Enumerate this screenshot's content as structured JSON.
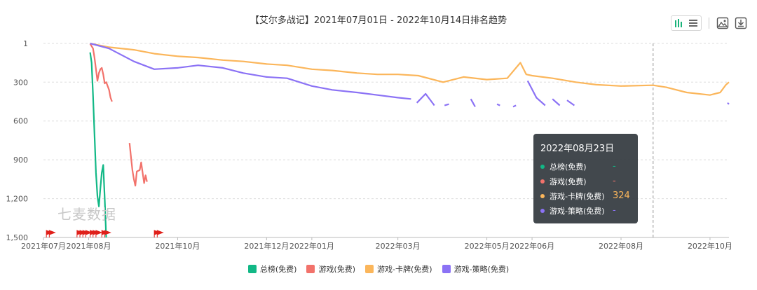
{
  "title": "【艾尔多战记】2021年07月01日 - 2022年10月14日排名趋势",
  "toolbar": {
    "chart_mode_icon": "bar-chart-icon",
    "list_mode_icon": "list-icon",
    "image_icon": "image-icon",
    "download_icon": "download-icon",
    "accent": "#19b37a"
  },
  "watermark": "七麦数据",
  "tooltip": {
    "date": "2022年08月23日",
    "rows": [
      {
        "name": "总榜(免费)",
        "value": "-",
        "color": "#12b886"
      },
      {
        "name": "游戏(免费)",
        "value": "-",
        "color": "#f2726b"
      },
      {
        "name": "游戏-卡牌(免费)",
        "value": "324",
        "color": "#fbb65b"
      },
      {
        "name": "游戏-策略(免费)",
        "value": "-",
        "color": "#8b72f5"
      }
    ]
  },
  "chart_data": {
    "type": "line",
    "title": "【艾尔多战记】2021年07月01日 - 2022年10月14日排名趋势",
    "xlabel": "",
    "ylabel": "",
    "y_inverted": true,
    "ylim": [
      1,
      1500
    ],
    "y_ticks": [
      "1",
      "300",
      "600",
      "900",
      "1,200",
      "1,500"
    ],
    "y_tick_values": [
      1,
      300,
      600,
      900,
      1200,
      1500
    ],
    "x_range": [
      "2021-07-01",
      "2022-10-14"
    ],
    "x_ticks": [
      "2021年07月",
      "2021年08月",
      "2021年10月",
      "2021年12月",
      "2022年01月",
      "2022年03月",
      "2022年05月",
      "2022年06月",
      "2022年08月",
      "2022年10月"
    ],
    "x_tick_dates": [
      "2021-07-01",
      "2021-08-01",
      "2021-10-01",
      "2021-12-01",
      "2022-01-01",
      "2022-03-01",
      "2022-05-01",
      "2022-06-01",
      "2022-08-01",
      "2022-10-01"
    ],
    "grid": true,
    "legend_position": "bottom",
    "crosshair_date": "2022-08-23",
    "event_flag_dates": [
      "2021-07-03",
      "2021-07-05",
      "2021-07-24",
      "2021-07-26",
      "2021-07-28",
      "2021-07-30",
      "2021-08-02",
      "2021-08-04",
      "2021-08-06",
      "2021-08-10",
      "2021-08-12",
      "2021-09-15",
      "2021-09-17"
    ],
    "series": [
      {
        "name": "总榜(免费)",
        "color": "#12b886",
        "segments": [
          [
            [
              "2021-08-02",
              70
            ],
            [
              "2021-08-03",
              150
            ],
            [
              "2021-08-04",
              400
            ],
            [
              "2021-08-05",
              700
            ],
            [
              "2021-08-06",
              1000
            ],
            [
              "2021-08-07",
              1180
            ],
            [
              "2021-08-08",
              1260
            ],
            [
              "2021-08-09",
              1120
            ],
            [
              "2021-08-10",
              1000
            ],
            [
              "2021-08-11",
              940
            ],
            [
              "2021-08-12",
              1200
            ],
            [
              "2021-08-13",
              1500
            ]
          ]
        ]
      },
      {
        "name": "游戏(免费)",
        "color": "#f2726b",
        "segments": [
          [
            [
              "2021-08-02",
              3
            ],
            [
              "2021-08-04",
              40
            ],
            [
              "2021-08-05",
              110
            ],
            [
              "2021-08-06",
              200
            ],
            [
              "2021-08-07",
              290
            ],
            [
              "2021-08-08",
              230
            ],
            [
              "2021-08-09",
              200
            ],
            [
              "2021-08-10",
              190
            ],
            [
              "2021-08-11",
              240
            ],
            [
              "2021-08-12",
              310
            ],
            [
              "2021-08-13",
              300
            ],
            [
              "2021-08-15",
              360
            ],
            [
              "2021-08-16",
              420
            ],
            [
              "2021-08-17",
              450
            ]
          ],
          [
            [
              "2021-08-29",
              770
            ],
            [
              "2021-08-30",
              880
            ],
            [
              "2021-08-31",
              980
            ],
            [
              "2021-09-01",
              1050
            ],
            [
              "2021-09-02",
              1100
            ],
            [
              "2021-09-03",
              990
            ],
            [
              "2021-09-05",
              980
            ],
            [
              "2021-09-06",
              920
            ],
            [
              "2021-09-07",
              1000
            ],
            [
              "2021-09-08",
              1080
            ],
            [
              "2021-09-09",
              1020
            ],
            [
              "2021-09-10",
              1070
            ]
          ]
        ]
      },
      {
        "name": "游戏-卡牌(免费)",
        "color": "#fbb65b",
        "segments": [
          [
            [
              "2021-08-02",
              1
            ],
            [
              "2021-08-15",
              30
            ],
            [
              "2021-09-01",
              50
            ],
            [
              "2021-09-15",
              80
            ],
            [
              "2021-10-01",
              100
            ],
            [
              "2021-10-15",
              110
            ],
            [
              "2021-11-01",
              130
            ],
            [
              "2021-11-15",
              140
            ],
            [
              "2021-12-01",
              160
            ],
            [
              "2021-12-15",
              170
            ],
            [
              "2022-01-01",
              200
            ],
            [
              "2022-01-15",
              210
            ],
            [
              "2022-02-01",
              230
            ],
            [
              "2022-02-15",
              240
            ],
            [
              "2022-03-01",
              240
            ],
            [
              "2022-03-15",
              250
            ],
            [
              "2022-04-01",
              300
            ],
            [
              "2022-04-15",
              260
            ],
            [
              "2022-05-01",
              280
            ],
            [
              "2022-05-15",
              270
            ],
            [
              "2022-05-24",
              150
            ],
            [
              "2022-05-28",
              240
            ],
            [
              "2022-06-01",
              250
            ],
            [
              "2022-06-15",
              270
            ],
            [
              "2022-07-01",
              300
            ],
            [
              "2022-07-15",
              320
            ],
            [
              "2022-08-01",
              330
            ],
            [
              "2022-08-23",
              324
            ],
            [
              "2022-09-01",
              340
            ],
            [
              "2022-09-15",
              380
            ],
            [
              "2022-10-01",
              400
            ],
            [
              "2022-10-08",
              380
            ],
            [
              "2022-10-12",
              320
            ],
            [
              "2022-10-14",
              300
            ]
          ]
        ]
      },
      {
        "name": "游戏-策略(免费)",
        "color": "#8b72f5",
        "segments": [
          [
            [
              "2021-08-02",
              1
            ],
            [
              "2021-08-15",
              40
            ],
            [
              "2021-09-01",
              140
            ],
            [
              "2021-09-15",
              200
            ],
            [
              "2021-10-01",
              190
            ],
            [
              "2021-10-15",
              170
            ],
            [
              "2021-11-01",
              190
            ],
            [
              "2021-11-15",
              230
            ],
            [
              "2021-12-01",
              260
            ],
            [
              "2021-12-15",
              270
            ],
            [
              "2022-01-01",
              330
            ],
            [
              "2022-01-15",
              360
            ],
            [
              "2022-02-01",
              380
            ],
            [
              "2022-02-15",
              400
            ],
            [
              "2022-03-01",
              420
            ],
            [
              "2022-03-10",
              430
            ]
          ],
          [
            [
              "2022-03-14",
              460
            ],
            [
              "2022-03-20",
              390
            ],
            [
              "2022-03-26",
              480
            ]
          ],
          [
            [
              "2022-04-02",
              480
            ],
            [
              "2022-04-05",
              470
            ]
          ],
          [
            [
              "2022-04-20",
              430
            ],
            [
              "2022-04-23",
              490
            ]
          ],
          [
            [
              "2022-05-08",
              470
            ],
            [
              "2022-05-10",
              480
            ]
          ],
          [
            [
              "2022-05-19",
              490
            ],
            [
              "2022-05-21",
              480
            ]
          ],
          [
            [
              "2022-05-29",
              290
            ],
            [
              "2022-06-04",
              420
            ],
            [
              "2022-06-10",
              480
            ]
          ],
          [
            [
              "2022-06-15",
              430
            ],
            [
              "2022-06-20",
              480
            ]
          ],
          [
            [
              "2022-06-25",
              440
            ],
            [
              "2022-06-30",
              480
            ]
          ],
          [
            [
              "2022-10-13",
              460
            ],
            [
              "2022-10-14",
              470
            ]
          ]
        ]
      }
    ]
  }
}
